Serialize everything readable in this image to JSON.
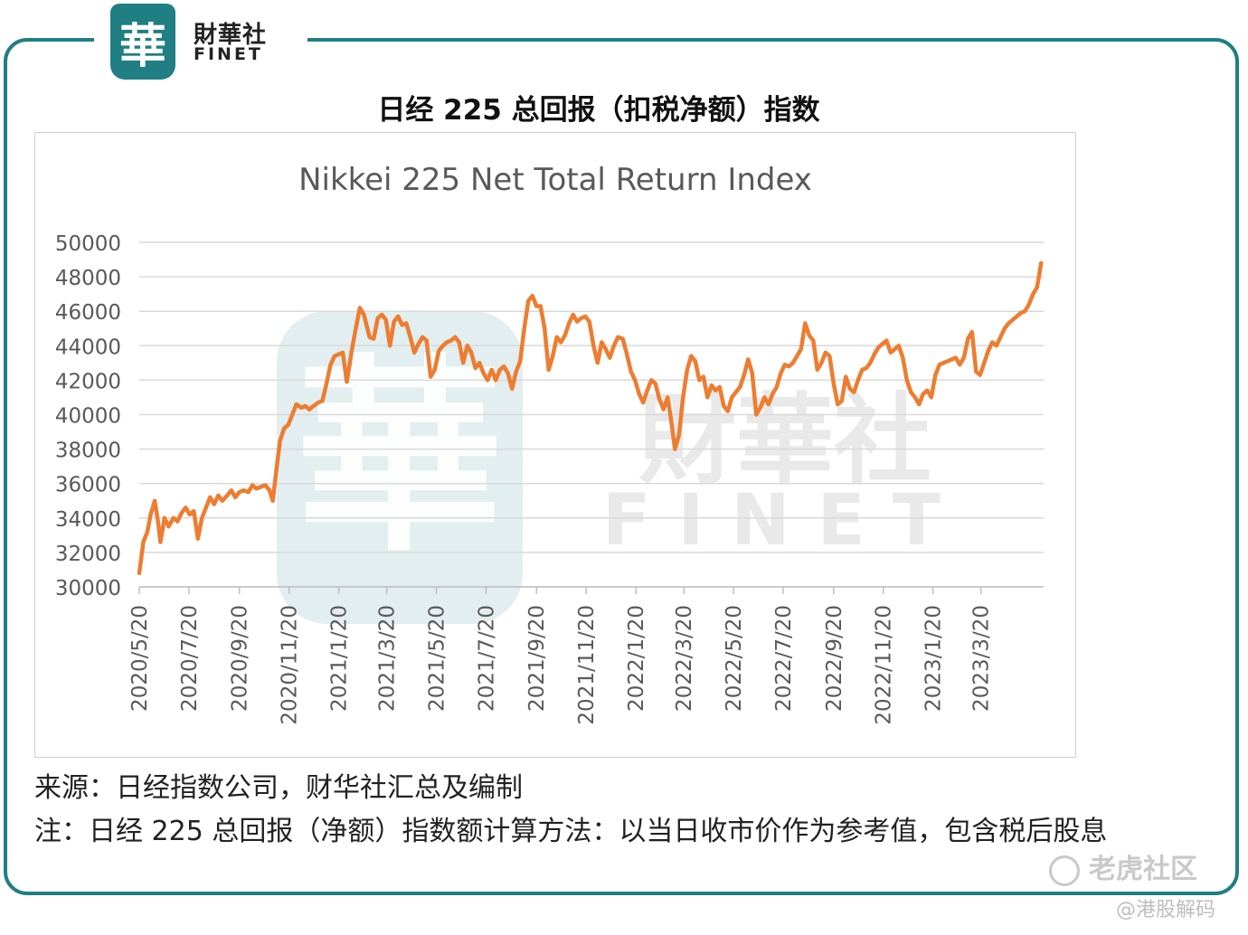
{
  "logo": {
    "seal_char": "華",
    "name_cn": "財華社",
    "name_en": "FINET"
  },
  "page_title": "日经 225 总回报（扣税净额）指数",
  "watermark": {
    "seal_char": "華",
    "name_cn": "財華社",
    "name_en": "FINET"
  },
  "source_text": "来源：日经指数公司，财华社汇总及编制",
  "note_text": "注：日经 225 总回报（净额）指数额计算方法：以当日收市价作为参考值，包含税后股息",
  "tiger_watermark": "老虎社区",
  "handle_watermark": "@港股解码",
  "colors": {
    "frame": "#1f7f83",
    "line": "#ed7d31",
    "grid": "#d9d9d9",
    "axis_text": "#595959"
  },
  "chart_data": {
    "type": "line",
    "title": "Nikkei 225 Net Total Return Index",
    "xlabel": "",
    "ylabel": "",
    "ylim": [
      30000,
      50000
    ],
    "yticks": [
      "30000",
      "32000",
      "34000",
      "36000",
      "38000",
      "40000",
      "42000",
      "44000",
      "46000",
      "48000",
      "50000"
    ],
    "xticks": [
      "2020/5/20",
      "2020/7/20",
      "2020/9/20",
      "2020/11/20",
      "2021/1/20",
      "2021/3/20",
      "2021/5/20",
      "2021/7/20",
      "2021/9/20",
      "2021/11/20",
      "2022/1/20",
      "2022/3/20",
      "2022/5/20",
      "2022/7/20",
      "2022/9/20",
      "2022/11/20",
      "2023/1/20",
      "2023/3/20"
    ],
    "xrange": [
      "2020-05-20",
      "2023-06-05"
    ],
    "grid": true,
    "legend": "none",
    "series": [
      {
        "points": [
          [
            "2020-05-20",
            30800
          ],
          [
            "2020-05-25",
            32600
          ],
          [
            "2020-05-30",
            33200
          ],
          [
            "2020-06-03",
            34200
          ],
          [
            "2020-06-08",
            35000
          ],
          [
            "2020-06-12",
            33800
          ],
          [
            "2020-06-15",
            32600
          ],
          [
            "2020-06-20",
            34000
          ],
          [
            "2020-06-25",
            33500
          ],
          [
            "2020-07-01",
            34000
          ],
          [
            "2020-07-06",
            33800
          ],
          [
            "2020-07-11",
            34300
          ],
          [
            "2020-07-16",
            34600
          ],
          [
            "2020-07-21",
            34200
          ],
          [
            "2020-07-26",
            34400
          ],
          [
            "2020-07-31",
            32800
          ],
          [
            "2020-08-05",
            34000
          ],
          [
            "2020-08-10",
            34600
          ],
          [
            "2020-08-15",
            35200
          ],
          [
            "2020-08-20",
            34800
          ],
          [
            "2020-08-25",
            35300
          ],
          [
            "2020-08-30",
            35000
          ],
          [
            "2020-09-05",
            35300
          ],
          [
            "2020-09-10",
            35600
          ],
          [
            "2020-09-15",
            35200
          ],
          [
            "2020-09-20",
            35500
          ],
          [
            "2020-09-25",
            35600
          ],
          [
            "2020-10-01",
            35500
          ],
          [
            "2020-10-06",
            35900
          ],
          [
            "2020-10-11",
            35700
          ],
          [
            "2020-10-16",
            35800
          ],
          [
            "2020-10-22",
            35900
          ],
          [
            "2020-10-27",
            35600
          ],
          [
            "2020-10-31",
            35000
          ],
          [
            "2020-11-05",
            37000
          ],
          [
            "2020-11-09",
            38500
          ],
          [
            "2020-11-14",
            39200
          ],
          [
            "2020-11-19",
            39400
          ],
          [
            "2020-11-24",
            40000
          ],
          [
            "2020-11-29",
            40600
          ],
          [
            "2020-12-05",
            40400
          ],
          [
            "2020-12-10",
            40500
          ],
          [
            "2020-12-15",
            40300
          ],
          [
            "2020-12-20",
            40500
          ],
          [
            "2020-12-26",
            40700
          ],
          [
            "2020-12-31",
            40800
          ],
          [
            "2021-01-05",
            41800
          ],
          [
            "2021-01-10",
            42900
          ],
          [
            "2021-01-15",
            43400
          ],
          [
            "2021-01-20",
            43500
          ],
          [
            "2021-01-25",
            43600
          ],
          [
            "2021-01-30",
            41900
          ],
          [
            "2021-02-05",
            43700
          ],
          [
            "2021-02-10",
            45000
          ],
          [
            "2021-02-15",
            46200
          ],
          [
            "2021-02-20",
            45800
          ],
          [
            "2021-02-27",
            44500
          ],
          [
            "2021-03-04",
            44400
          ],
          [
            "2021-03-09",
            45600
          ],
          [
            "2021-03-14",
            45800
          ],
          [
            "2021-03-19",
            45500
          ],
          [
            "2021-03-24",
            44000
          ],
          [
            "2021-03-29",
            45400
          ],
          [
            "2021-04-03",
            45700
          ],
          [
            "2021-04-08",
            45200
          ],
          [
            "2021-04-13",
            45300
          ],
          [
            "2021-04-18",
            44500
          ],
          [
            "2021-04-23",
            43600
          ],
          [
            "2021-04-28",
            44100
          ],
          [
            "2021-05-03",
            44500
          ],
          [
            "2021-05-08",
            44300
          ],
          [
            "2021-05-13",
            42200
          ],
          [
            "2021-05-18",
            42600
          ],
          [
            "2021-05-23",
            43700
          ],
          [
            "2021-05-28",
            44000
          ],
          [
            "2021-06-02",
            44200
          ],
          [
            "2021-06-07",
            44300
          ],
          [
            "2021-06-12",
            44500
          ],
          [
            "2021-06-17",
            44200
          ],
          [
            "2021-06-22",
            43000
          ],
          [
            "2021-06-27",
            44000
          ],
          [
            "2021-07-02",
            43600
          ],
          [
            "2021-07-07",
            42700
          ],
          [
            "2021-07-12",
            43000
          ],
          [
            "2021-07-17",
            42400
          ],
          [
            "2021-07-22",
            42000
          ],
          [
            "2021-07-27",
            42600
          ],
          [
            "2021-08-01",
            42000
          ],
          [
            "2021-08-06",
            42600
          ],
          [
            "2021-08-11",
            42800
          ],
          [
            "2021-08-16",
            42400
          ],
          [
            "2021-08-21",
            41500
          ],
          [
            "2021-08-26",
            42500
          ],
          [
            "2021-08-31",
            43100
          ],
          [
            "2021-09-05",
            45000
          ],
          [
            "2021-09-10",
            46600
          ],
          [
            "2021-09-15",
            46900
          ],
          [
            "2021-09-20",
            46300
          ],
          [
            "2021-09-25",
            46300
          ],
          [
            "2021-09-30",
            45000
          ],
          [
            "2021-10-05",
            42600
          ],
          [
            "2021-10-10",
            43400
          ],
          [
            "2021-10-15",
            44500
          ],
          [
            "2021-10-20",
            44200
          ],
          [
            "2021-10-25",
            44600
          ],
          [
            "2021-10-30",
            45300
          ],
          [
            "2021-11-04",
            45800
          ],
          [
            "2021-11-09",
            45400
          ],
          [
            "2021-11-14",
            45600
          ],
          [
            "2021-11-19",
            45700
          ],
          [
            "2021-11-24",
            45400
          ],
          [
            "2021-11-29",
            44000
          ],
          [
            "2021-12-04",
            43000
          ],
          [
            "2021-12-09",
            44200
          ],
          [
            "2021-12-14",
            43800
          ],
          [
            "2021-12-19",
            43300
          ],
          [
            "2021-12-24",
            44000
          ],
          [
            "2021-12-29",
            44500
          ],
          [
            "2022-01-04",
            44400
          ],
          [
            "2022-01-09",
            43500
          ],
          [
            "2022-01-14",
            42500
          ],
          [
            "2022-01-19",
            42000
          ],
          [
            "2022-01-24",
            41200
          ],
          [
            "2022-01-29",
            40700
          ],
          [
            "2022-02-03",
            41400
          ],
          [
            "2022-02-08",
            42000
          ],
          [
            "2022-02-13",
            41800
          ],
          [
            "2022-02-18",
            40900
          ],
          [
            "2022-02-23",
            40300
          ],
          [
            "2022-02-28",
            41000
          ],
          [
            "2022-03-04",
            39800
          ],
          [
            "2022-03-09",
            38000
          ],
          [
            "2022-03-14",
            38800
          ],
          [
            "2022-03-19",
            41000
          ],
          [
            "2022-03-24",
            42600
          ],
          [
            "2022-03-29",
            43400
          ],
          [
            "2022-04-03",
            43100
          ],
          [
            "2022-04-08",
            42000
          ],
          [
            "2022-04-13",
            42200
          ],
          [
            "2022-04-18",
            41000
          ],
          [
            "2022-04-23",
            41700
          ],
          [
            "2022-04-28",
            41400
          ],
          [
            "2022-05-03",
            41600
          ],
          [
            "2022-05-08",
            40500
          ],
          [
            "2022-05-13",
            40200
          ],
          [
            "2022-05-18",
            41000
          ],
          [
            "2022-05-23",
            41300
          ],
          [
            "2022-05-28",
            41600
          ],
          [
            "2022-06-02",
            42300
          ],
          [
            "2022-06-07",
            43200
          ],
          [
            "2022-06-12",
            42400
          ],
          [
            "2022-06-17",
            40000
          ],
          [
            "2022-06-22",
            40400
          ],
          [
            "2022-06-27",
            41000
          ],
          [
            "2022-07-02",
            40600
          ],
          [
            "2022-07-07",
            41200
          ],
          [
            "2022-07-12",
            41600
          ],
          [
            "2022-07-17",
            42400
          ],
          [
            "2022-07-22",
            42900
          ],
          [
            "2022-07-27",
            42800
          ],
          [
            "2022-08-01",
            43000
          ],
          [
            "2022-08-06",
            43400
          ],
          [
            "2022-08-11",
            43800
          ],
          [
            "2022-08-16",
            45300
          ],
          [
            "2022-08-21",
            44600
          ],
          [
            "2022-08-26",
            44300
          ],
          [
            "2022-08-31",
            42600
          ],
          [
            "2022-09-05",
            43000
          ],
          [
            "2022-09-10",
            43600
          ],
          [
            "2022-09-15",
            43400
          ],
          [
            "2022-09-20",
            41800
          ],
          [
            "2022-09-25",
            40600
          ],
          [
            "2022-09-30",
            40800
          ],
          [
            "2022-10-05",
            42200
          ],
          [
            "2022-10-10",
            41500
          ],
          [
            "2022-10-15",
            41300
          ],
          [
            "2022-10-20",
            42000
          ],
          [
            "2022-10-25",
            42600
          ],
          [
            "2022-10-30",
            42700
          ],
          [
            "2022-11-04",
            43000
          ],
          [
            "2022-11-09",
            43500
          ],
          [
            "2022-11-14",
            43900
          ],
          [
            "2022-11-19",
            44100
          ],
          [
            "2022-11-24",
            44300
          ],
          [
            "2022-11-29",
            43600
          ],
          [
            "2022-12-04",
            43800
          ],
          [
            "2022-12-09",
            44000
          ],
          [
            "2022-12-14",
            43300
          ],
          [
            "2022-12-19",
            42000
          ],
          [
            "2022-12-24",
            41300
          ],
          [
            "2022-12-29",
            41000
          ],
          [
            "2023-01-03",
            40600
          ],
          [
            "2023-01-08",
            41200
          ],
          [
            "2023-01-13",
            41400
          ],
          [
            "2023-01-18",
            41000
          ],
          [
            "2023-01-23",
            42300
          ],
          [
            "2023-01-28",
            42900
          ],
          [
            "2023-02-02",
            43000
          ],
          [
            "2023-02-07",
            43100
          ],
          [
            "2023-02-12",
            43200
          ],
          [
            "2023-02-17",
            43300
          ],
          [
            "2023-02-22",
            42900
          ],
          [
            "2023-02-27",
            43300
          ],
          [
            "2023-03-04",
            44400
          ],
          [
            "2023-03-09",
            44800
          ],
          [
            "2023-03-14",
            42500
          ],
          [
            "2023-03-19",
            42300
          ],
          [
            "2023-03-24",
            43000
          ],
          [
            "2023-03-29",
            43700
          ],
          [
            "2023-04-03",
            44200
          ],
          [
            "2023-04-08",
            44000
          ],
          [
            "2023-04-13",
            44500
          ],
          [
            "2023-04-18",
            45000
          ],
          [
            "2023-04-23",
            45300
          ],
          [
            "2023-04-28",
            45500
          ],
          [
            "2023-05-03",
            45700
          ],
          [
            "2023-05-08",
            45900
          ],
          [
            "2023-05-13",
            46000
          ],
          [
            "2023-05-18",
            46400
          ],
          [
            "2023-05-23",
            47000
          ],
          [
            "2023-05-28",
            47400
          ],
          [
            "2023-06-02",
            48800
          ]
        ]
      }
    ]
  }
}
